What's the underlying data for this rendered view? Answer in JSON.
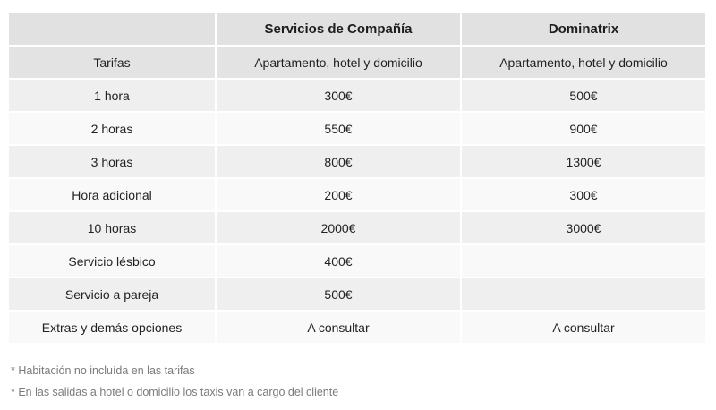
{
  "table": {
    "header": [
      "",
      "Servicios de Compañía",
      "Dominatrix"
    ],
    "rows": [
      [
        "Tarifas",
        "Apartamento, hotel y domicilio",
        "Apartamento, hotel y domicilio"
      ],
      [
        "1 hora",
        "300€",
        "500€"
      ],
      [
        "2 horas",
        "550€",
        "900€"
      ],
      [
        "3 horas",
        "800€",
        "1300€"
      ],
      [
        "Hora adicional",
        "200€",
        "300€"
      ],
      [
        "10 horas",
        "2000€",
        "3000€"
      ],
      [
        "Servicio lésbico",
        "400€",
        ""
      ],
      [
        "Servicio a pareja",
        "500€",
        ""
      ],
      [
        "Extras y demás opciones",
        "A consultar",
        "A consultar"
      ]
    ]
  },
  "footnotes": [
    "* Habitación no incluída en las tarifas",
    "* En las salidas a hotel o domicilio los taxis van a cargo del cliente"
  ],
  "colors": {
    "header_bg": "#e1e1e1",
    "subheader_bg": "#e3e3e3",
    "row_odd_bg": "#efefef",
    "row_even_bg": "#f9f9f9",
    "gap": "#ffffff",
    "text": "#222222",
    "footnote_text": "#7b7b7b"
  }
}
